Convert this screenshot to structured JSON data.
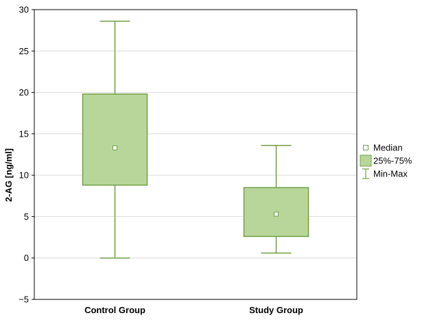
{
  "chart_data": {
    "type": "box",
    "ylabel": "2-AG [ng/ml]",
    "ylim": [
      -5,
      30
    ],
    "yticks": [
      -5,
      0,
      5,
      10,
      15,
      20,
      25,
      30
    ],
    "ytick_labels": [
      "−5",
      "0",
      "5",
      "10",
      "15",
      "20",
      "25",
      "30"
    ],
    "grid": "horizontal",
    "legend_position": "right",
    "categories": [
      "Control Group",
      "Study Group"
    ],
    "boxes": [
      {
        "category": "Control Group",
        "min": 0,
        "q1": 8.8,
        "median": 13.3,
        "q3": 19.8,
        "max": 28.6
      },
      {
        "category": "Study Group",
        "min": 0.6,
        "q1": 2.6,
        "median": 5.3,
        "q3": 8.5,
        "max": 13.6
      }
    ],
    "legend": [
      {
        "symbol": "median",
        "label": "Median"
      },
      {
        "symbol": "box",
        "label": "25%-75%"
      },
      {
        "symbol": "whisker",
        "label": "Min-Max"
      }
    ],
    "colors": {
      "fill": "#b8d69a",
      "stroke": "#6f9e45",
      "grid": "#d9d9d9",
      "axis": "#000000"
    }
  }
}
